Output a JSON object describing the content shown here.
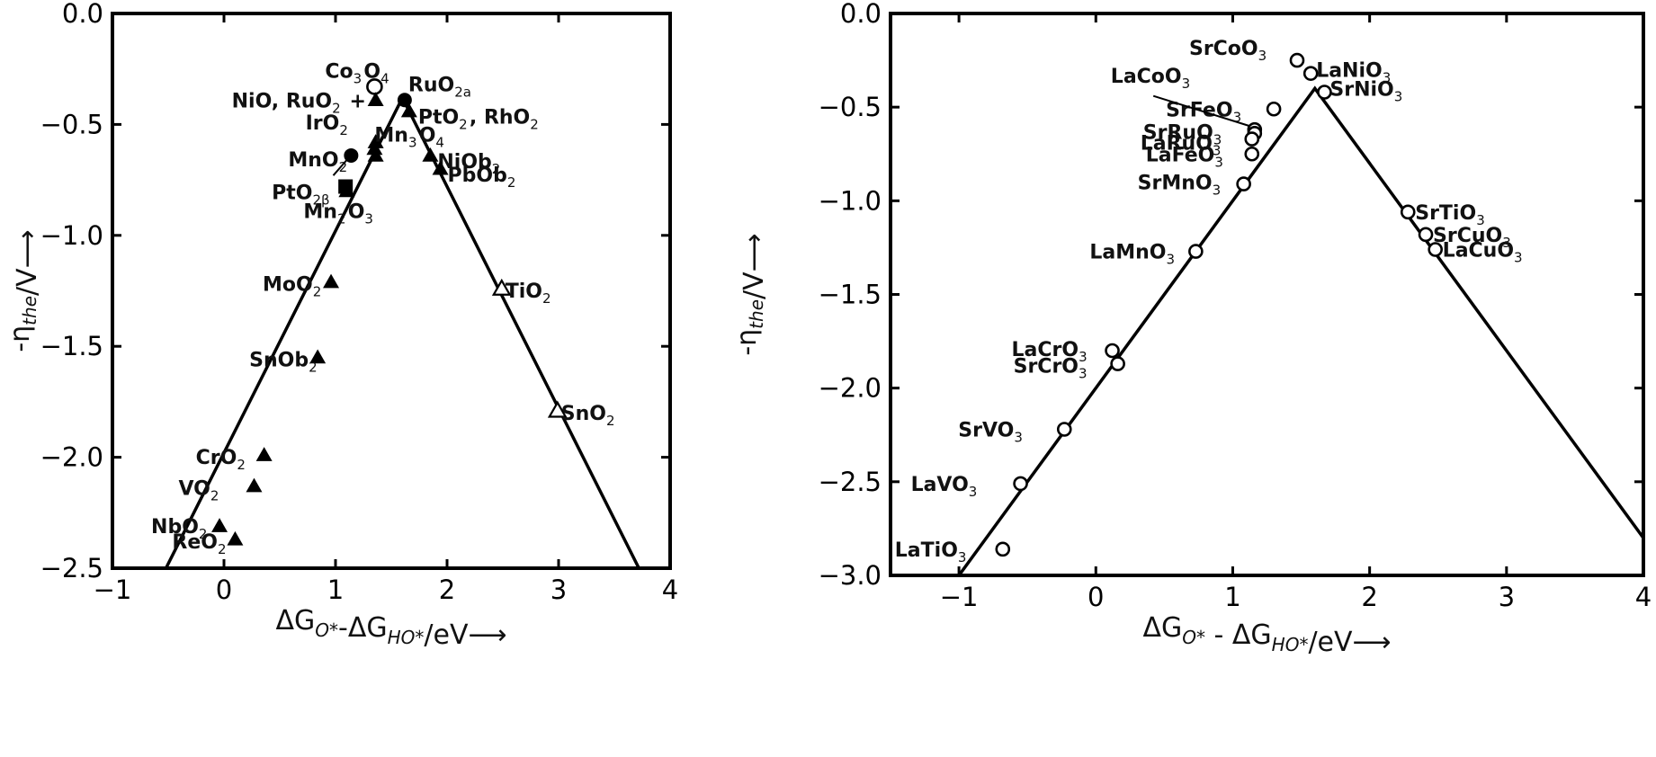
{
  "chart_data": [
    {
      "type": "scatter",
      "xlabel": "ΔG_{O*}-ΔG_{HO*}/eV⟶",
      "ylabel": "-η_{the}/V⟶",
      "xlim": [
        -1,
        4
      ],
      "ylim": [
        -2.5,
        0
      ],
      "xticks": [
        -1,
        0,
        1,
        2,
        3,
        4
      ],
      "xtick_labels": [
        "−1",
        "0",
        "1",
        "2",
        "3",
        "4"
      ],
      "yticks": [
        0,
        -0.5,
        -1,
        -1.5,
        -2,
        -2.5
      ],
      "ytick_labels": [
        "0.0",
        "−0.5",
        "−1.0",
        "−1.5",
        "−2.0",
        "−2.5"
      ],
      "grid": false,
      "volcano_line": {
        "x": [
          -0.52,
          1.6,
          3.72
        ],
        "y": [
          -2.5,
          -0.38,
          -2.5
        ]
      },
      "points": [
        {
          "x": 1.35,
          "y": -0.33,
          "marker": "circle-open",
          "label": "Co_3O_4"
        },
        {
          "x": 1.36,
          "y": -0.39,
          "marker": "triangle",
          "label": "NiO, RuO_2 +"
        },
        {
          "x": 1.62,
          "y": -0.39,
          "marker": "circle-filled",
          "label": "RuO_2a"
        },
        {
          "x": 1.66,
          "y": -0.44,
          "marker": "triangle",
          "label": "PtO_2, RhO_2"
        },
        {
          "x": 1.36,
          "y": -0.58,
          "marker": "triangle",
          "label": "IrO_2"
        },
        {
          "x": 1.35,
          "y": -0.61,
          "marker": "triangle",
          "label": "Mn_3O_4"
        },
        {
          "x": 1.36,
          "y": -0.64,
          "marker": "triangle",
          "label": ""
        },
        {
          "x": 1.14,
          "y": -0.64,
          "marker": "circle-filled",
          "label": "MnO_2"
        },
        {
          "x": 1.85,
          "y": -0.64,
          "marker": "triangle",
          "label": "NiOb_2"
        },
        {
          "x": 1.94,
          "y": -0.7,
          "marker": "triangle",
          "label": "PbOb_2"
        },
        {
          "x": 1.09,
          "y": -0.78,
          "marker": "square",
          "label": "PtO_2β"
        },
        {
          "x": 1.1,
          "y": -0.8,
          "marker": "triangle",
          "label": "Mn_2O_3"
        },
        {
          "x": 0.96,
          "y": -1.21,
          "marker": "triangle",
          "label": "MoO_2"
        },
        {
          "x": 2.49,
          "y": -1.24,
          "marker": "triangle-open",
          "label": "TiO_2"
        },
        {
          "x": 0.84,
          "y": -1.55,
          "marker": "triangle",
          "label": "SnOb_2"
        },
        {
          "x": 2.99,
          "y": -1.79,
          "marker": "triangle-open",
          "label": "SnO_2"
        },
        {
          "x": 0.36,
          "y": -1.99,
          "marker": "triangle",
          "label": "CrO_2"
        },
        {
          "x": 0.27,
          "y": -2.13,
          "marker": "triangle",
          "label": "VO_2"
        },
        {
          "x": -0.04,
          "y": -2.31,
          "marker": "triangle",
          "label": "NbO_2"
        },
        {
          "x": 0.1,
          "y": -2.37,
          "marker": "triangle",
          "label": "ReO_2"
        }
      ]
    },
    {
      "type": "scatter",
      "xlabel": "ΔG_{O*} - ΔG_{HO*}/eV⟶",
      "ylabel": "-η_{the}/V⟶",
      "xlim": [
        -1.5,
        4
      ],
      "ylim": [
        -3,
        0
      ],
      "xticks": [
        -1,
        0,
        1,
        2,
        3,
        4
      ],
      "xtick_labels": [
        "−1",
        "0",
        "1",
        "2",
        "3",
        "4"
      ],
      "yticks": [
        0,
        -0.5,
        -1,
        -1.5,
        -2,
        -2.5,
        -3
      ],
      "ytick_labels": [
        "0.0",
        "−0.5",
        "−1.0",
        "−1.5",
        "−2.0",
        "−2.5",
        "−3.0"
      ],
      "grid": false,
      "volcano_line": {
        "x": [
          -1.0,
          1.6,
          4.0
        ],
        "y": [
          -3.0,
          -0.4,
          -2.8
        ]
      },
      "points": [
        {
          "x": 1.47,
          "y": -0.25,
          "marker": "circle-open",
          "label": "SrCoO_3"
        },
        {
          "x": 1.57,
          "y": -0.32,
          "marker": "circle-open",
          "label": "LaNiO_3"
        },
        {
          "x": 1.67,
          "y": -0.42,
          "marker": "circle-open",
          "label": "SrNiO_3"
        },
        {
          "x": 1.16,
          "y": -0.62,
          "marker": "circle-open",
          "label": "LaCoO_3"
        },
        {
          "x": 1.3,
          "y": -0.51,
          "marker": "circle-open",
          "label": "SrFeO_3"
        },
        {
          "x": 1.16,
          "y": -0.64,
          "marker": "circle-open",
          "label": "SrRuO_3"
        },
        {
          "x": 1.14,
          "y": -0.67,
          "marker": "circle-open",
          "label": "LaRuO_3"
        },
        {
          "x": 1.14,
          "y": -0.75,
          "marker": "circle-open",
          "label": "LaFeO_3"
        },
        {
          "x": 1.08,
          "y": -0.91,
          "marker": "circle-open",
          "label": "SrMnO_3"
        },
        {
          "x": 2.28,
          "y": -1.06,
          "marker": "circle-open",
          "label": "SrTiO_3"
        },
        {
          "x": 2.41,
          "y": -1.18,
          "marker": "circle-open",
          "label": "SrCuO_3"
        },
        {
          "x": 2.48,
          "y": -1.26,
          "marker": "circle-open",
          "label": "LaCuO_3"
        },
        {
          "x": 0.73,
          "y": -1.27,
          "marker": "circle-open",
          "label": "LaMnO_3"
        },
        {
          "x": 0.12,
          "y": -1.8,
          "marker": "circle-open",
          "label": "LaCrO_3"
        },
        {
          "x": 0.16,
          "y": -1.87,
          "marker": "circle-open",
          "label": "SrCrO_3"
        },
        {
          "x": -0.23,
          "y": -2.22,
          "marker": "circle-open",
          "label": "SrVO_3"
        },
        {
          "x": -0.55,
          "y": -2.51,
          "marker": "circle-open",
          "label": "LaVO_3"
        },
        {
          "x": -0.68,
          "y": -2.86,
          "marker": "circle-open",
          "label": "LaTiO_3"
        }
      ]
    }
  ]
}
